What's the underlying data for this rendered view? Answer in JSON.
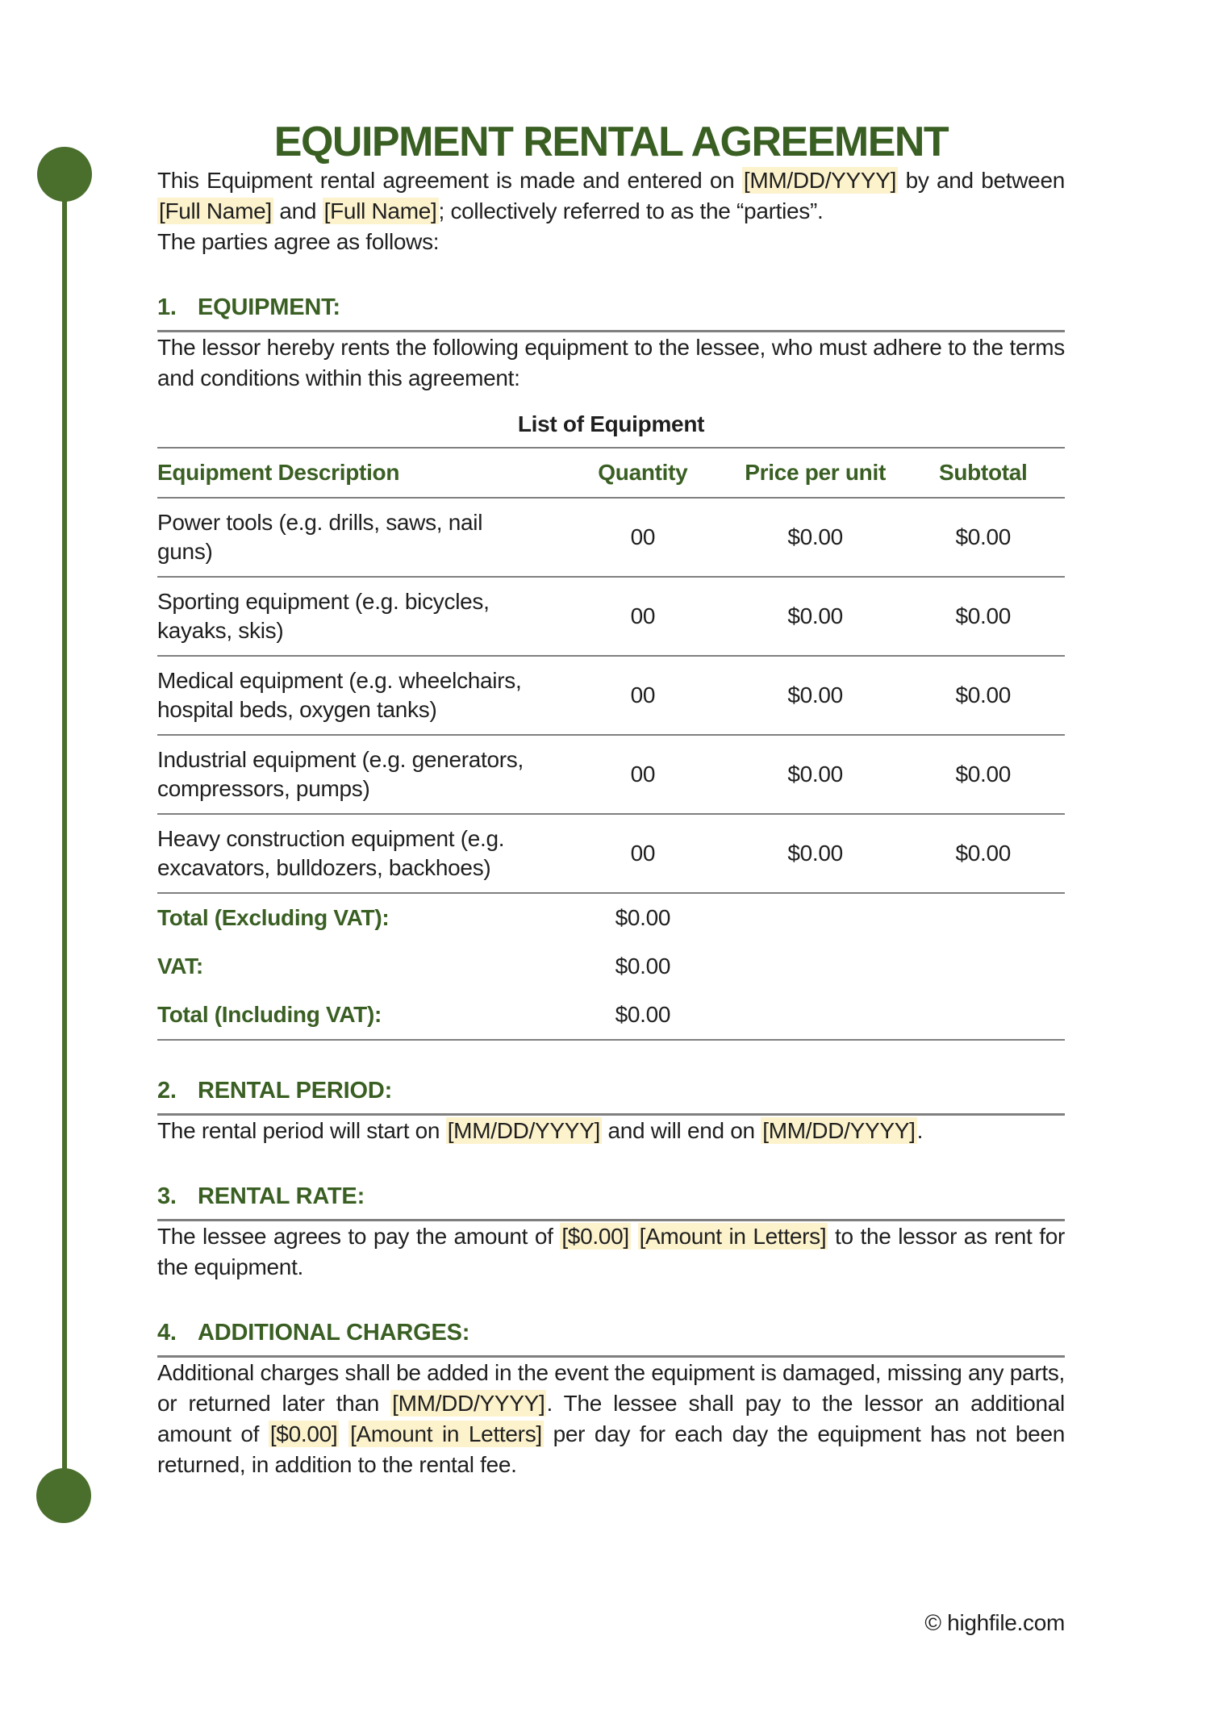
{
  "document": {
    "title": "EQUIPMENT RENTAL AGREEMENT",
    "intro": {
      "part1": "This Equipment rental agreement is made and entered on ",
      "date_field": "[MM/DD/YYYY]",
      "part2": " by and between ",
      "name_field_1": "[Full Name]",
      "part3": " and ",
      "name_field_2": "[Full Name]",
      "part4": "; collectively referred to as the “parties”.",
      "agreement_line": "The parties agree as follows:"
    },
    "sections": [
      {
        "number": "1.",
        "heading": "EQUIPMENT:",
        "body": {
          "part1": "The lessor hereby rents the following equipment to the lessee, who must adhere to the terms and conditions within this agreement:"
        }
      },
      {
        "number": "2.",
        "heading": "RENTAL PERIOD:",
        "body": {
          "part1": "The rental period will start on ",
          "start_date_field": "[MM/DD/YYYY]",
          "part2": " and will end on ",
          "end_date_field": "[MM/DD/YYYY]",
          "part3": "."
        }
      },
      {
        "number": "3.",
        "heading": "RENTAL RATE:",
        "body": {
          "part1": "The lessee agrees to pay the amount of ",
          "amount_field": "[$0.00]",
          "part2": " ",
          "amount_letters_field": "[Amount in Letters]",
          "part3": " to the lessor as rent for the equipment."
        }
      },
      {
        "number": "4.",
        "heading": "ADDITIONAL CHARGES:",
        "body": {
          "part1": "Additional charges shall be added in the event the equipment is damaged, missing any parts, or returned later than ",
          "return_date_field": "[MM/DD/YYYY]",
          "part2": ". The lessee shall pay to the lessor an additional amount of ",
          "amount_field": "[$0.00]",
          "part3": " ",
          "amount_letters_field": "[Amount in Letters]",
          "part4": " per day for each day the equipment has not been returned, in addition to the rental fee."
        }
      }
    ]
  },
  "equipment_table": {
    "caption": "List of Equipment",
    "columns": [
      "Equipment Description",
      "Quantity",
      "Price per unit",
      "Subtotal"
    ],
    "rows": [
      {
        "description": "Power tools (e.g. drills, saws, nail guns)",
        "quantity": "00",
        "price_per_unit": "$0.00",
        "subtotal": "$0.00"
      },
      {
        "description": "Sporting equipment (e.g. bicycles, kayaks, skis)",
        "quantity": "00",
        "price_per_unit": "$0.00",
        "subtotal": "$0.00"
      },
      {
        "description": "Medical equipment (e.g. wheelchairs, hospital beds, oxygen tanks)",
        "quantity": "00",
        "price_per_unit": "$0.00",
        "subtotal": "$0.00"
      },
      {
        "description": "Industrial equipment (e.g. generators, compressors, pumps)",
        "quantity": "00",
        "price_per_unit": "$0.00",
        "subtotal": "$0.00"
      },
      {
        "description": "Heavy construction equipment (e.g. excavators, bulldozers, backhoes)",
        "quantity": "00",
        "price_per_unit": "$0.00",
        "subtotal": "$0.00"
      }
    ],
    "totals": [
      {
        "label": "Total (Excluding VAT):",
        "value": "$0.00"
      },
      {
        "label": "VAT:",
        "value": "$0.00"
      },
      {
        "label": "Total (Including VAT):",
        "value": "$0.00"
      }
    ]
  },
  "footer": {
    "copyright": "© highfile.com"
  },
  "colors": {
    "accent_green": "#3a5f23",
    "decor_green": "#4a6e2c",
    "highlight_yellow": "#fcf2cc",
    "rule_gray": "#7f7f7f"
  }
}
